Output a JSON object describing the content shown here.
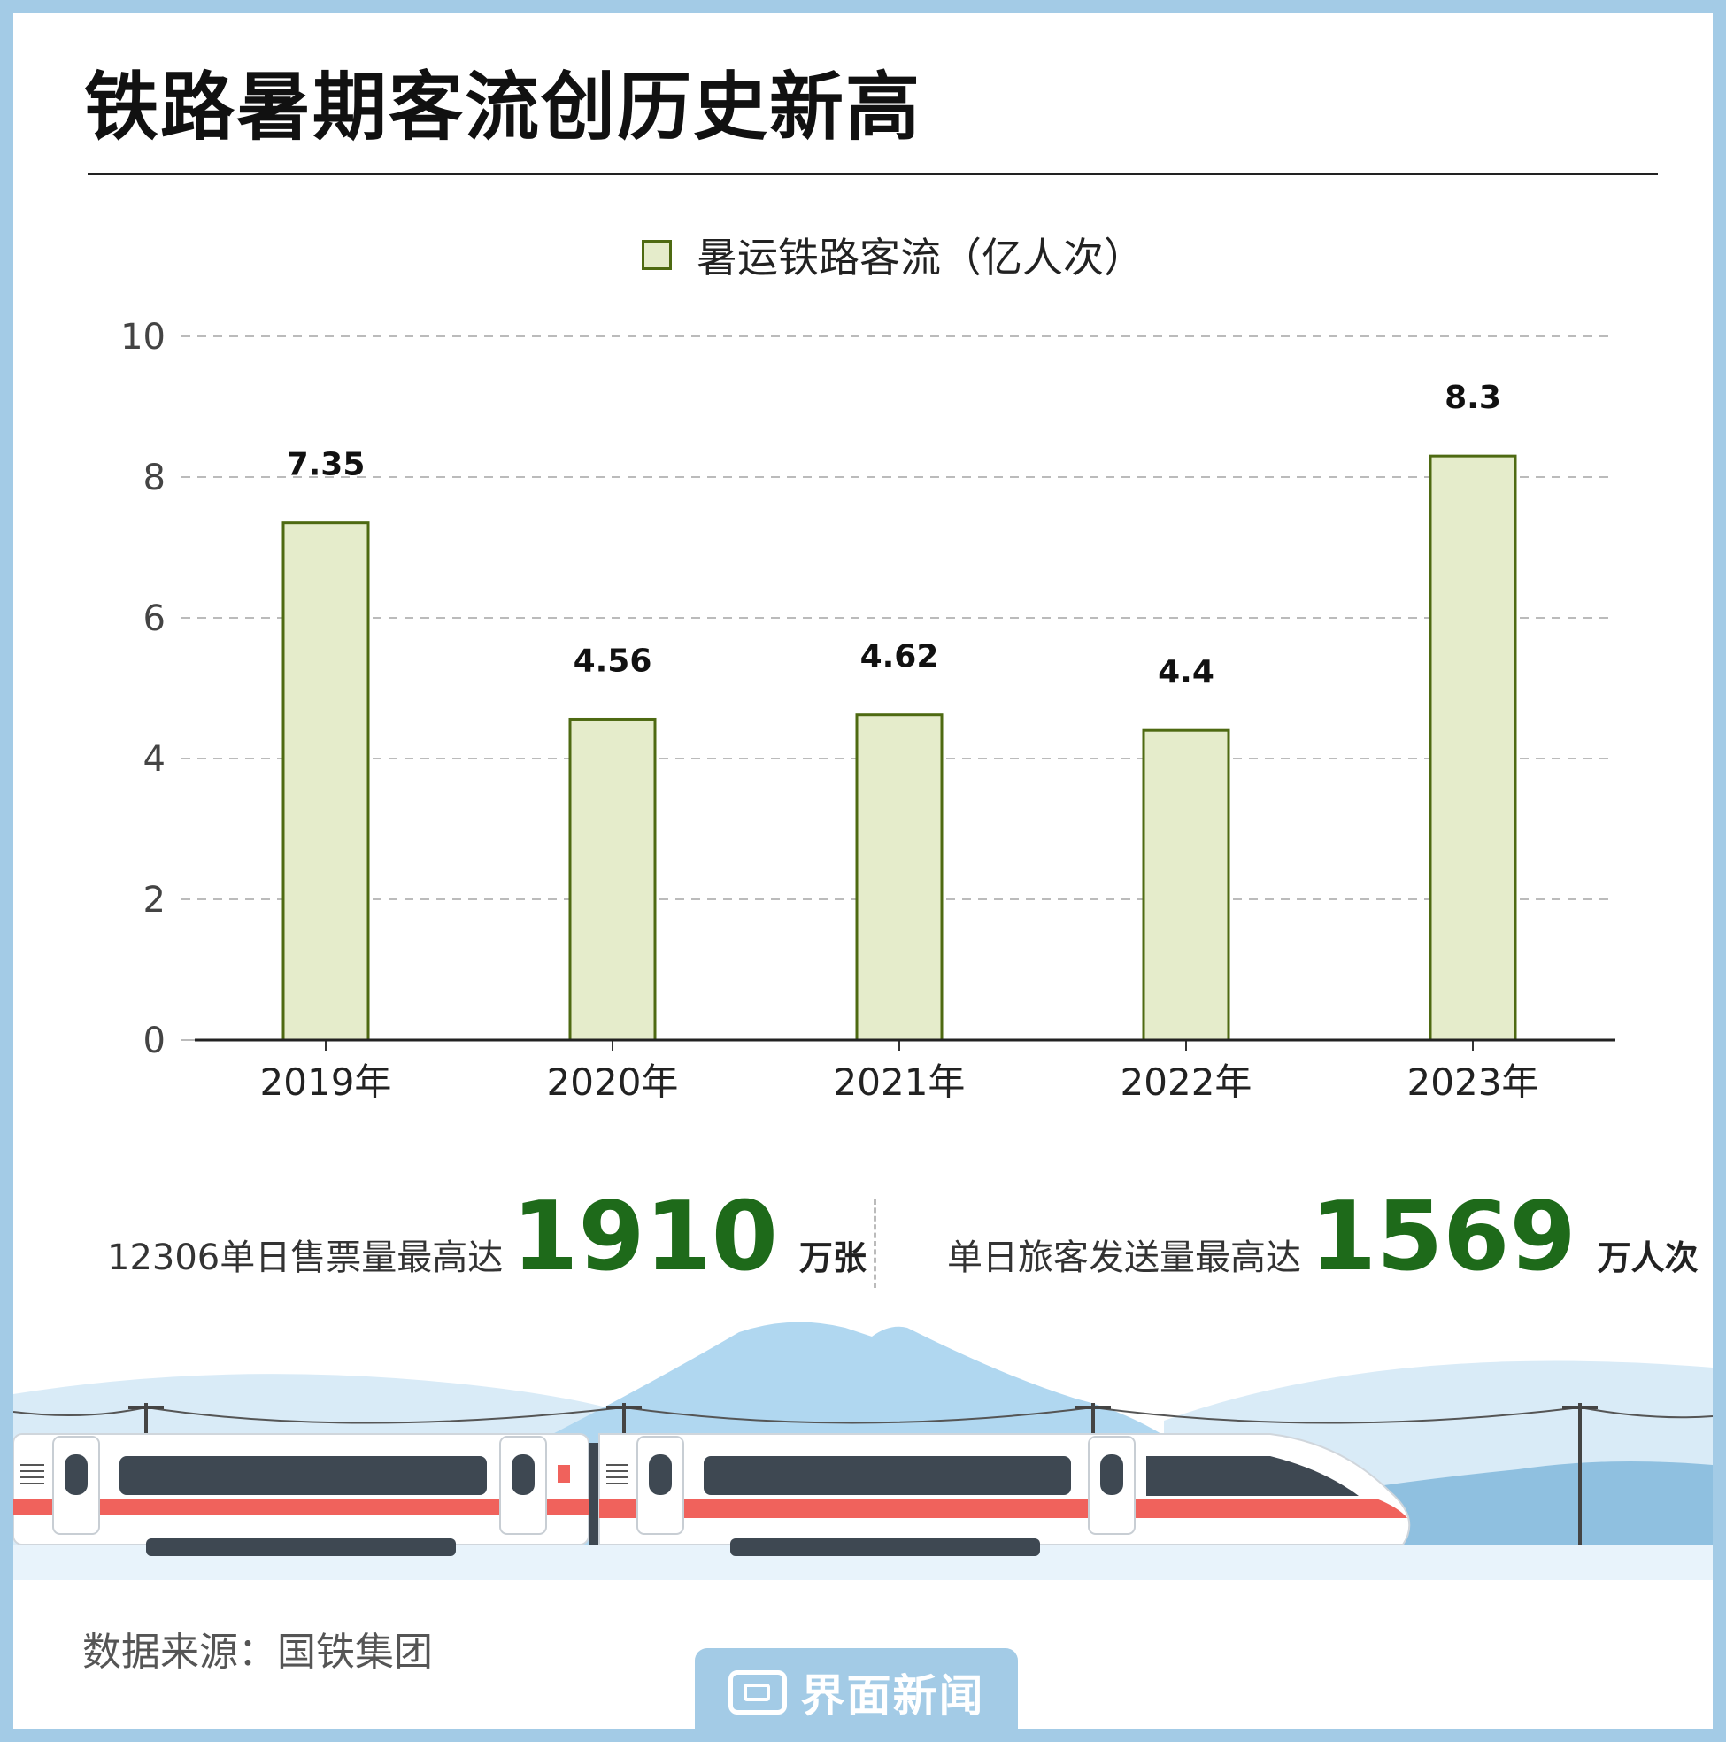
{
  "title": "铁路暑期客流创历史新高",
  "chart_data": {
    "type": "bar",
    "categories": [
      "2019年",
      "2020年",
      "2021年",
      "2022年",
      "2023年"
    ],
    "series": [
      {
        "name": "暑运铁路客流（亿人次）",
        "values": [
          7.35,
          4.56,
          4.62,
          4.4,
          8.3
        ]
      }
    ],
    "data_labels": [
      "7.35",
      "4.56",
      "4.62",
      "4.4",
      "8.3"
    ],
    "ylim": [
      0,
      10
    ],
    "yticks": [
      "0",
      "2",
      "4",
      "6",
      "8",
      "10"
    ],
    "grid": true,
    "legend_position": "top-center",
    "bar_fill": "#e5eccb",
    "bar_stroke": "#4e6a12"
  },
  "stats": [
    {
      "label": "12306单日售票量最高达",
      "value": "1910",
      "unit": "万张"
    },
    {
      "label": "单日旅客发送量最高达",
      "value": "1569",
      "unit": "万人次"
    }
  ],
  "source": "数据来源：国铁集团",
  "brand": "界面新闻",
  "colors": {
    "frame": "#a3cbe6",
    "accent_green": "#1e6a1a",
    "train_red": "#f0625c"
  }
}
